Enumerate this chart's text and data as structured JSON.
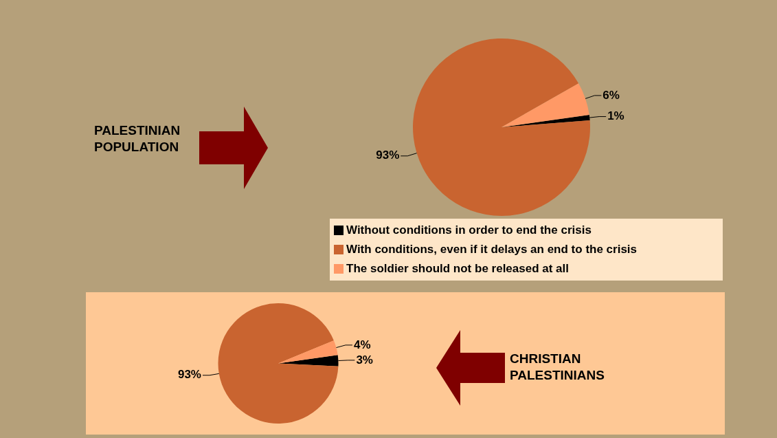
{
  "chart_data": [
    {
      "type": "pie",
      "title": "PALESTINIAN POPULATION",
      "categories": [
        "Without conditions in order to end the crisis",
        "With conditions, even if it delays an end to the crisis",
        "The soldier should not be released at all"
      ],
      "values": [
        1,
        93,
        6
      ],
      "colors": [
        "#000000",
        "#c96430",
        "#ff9966"
      ],
      "value_labels": [
        "1%",
        "93%",
        "6%"
      ],
      "legend": "bottom"
    },
    {
      "type": "pie",
      "title": "CHRISTIAN PALESTINIANS",
      "categories": [
        null,
        null,
        null
      ],
      "values": [
        3,
        93,
        4
      ],
      "colors": [
        "#000000",
        "#c96430",
        "#ff9966"
      ],
      "value_labels": [
        "3%",
        "93%",
        "4%"
      ]
    }
  ]
}
